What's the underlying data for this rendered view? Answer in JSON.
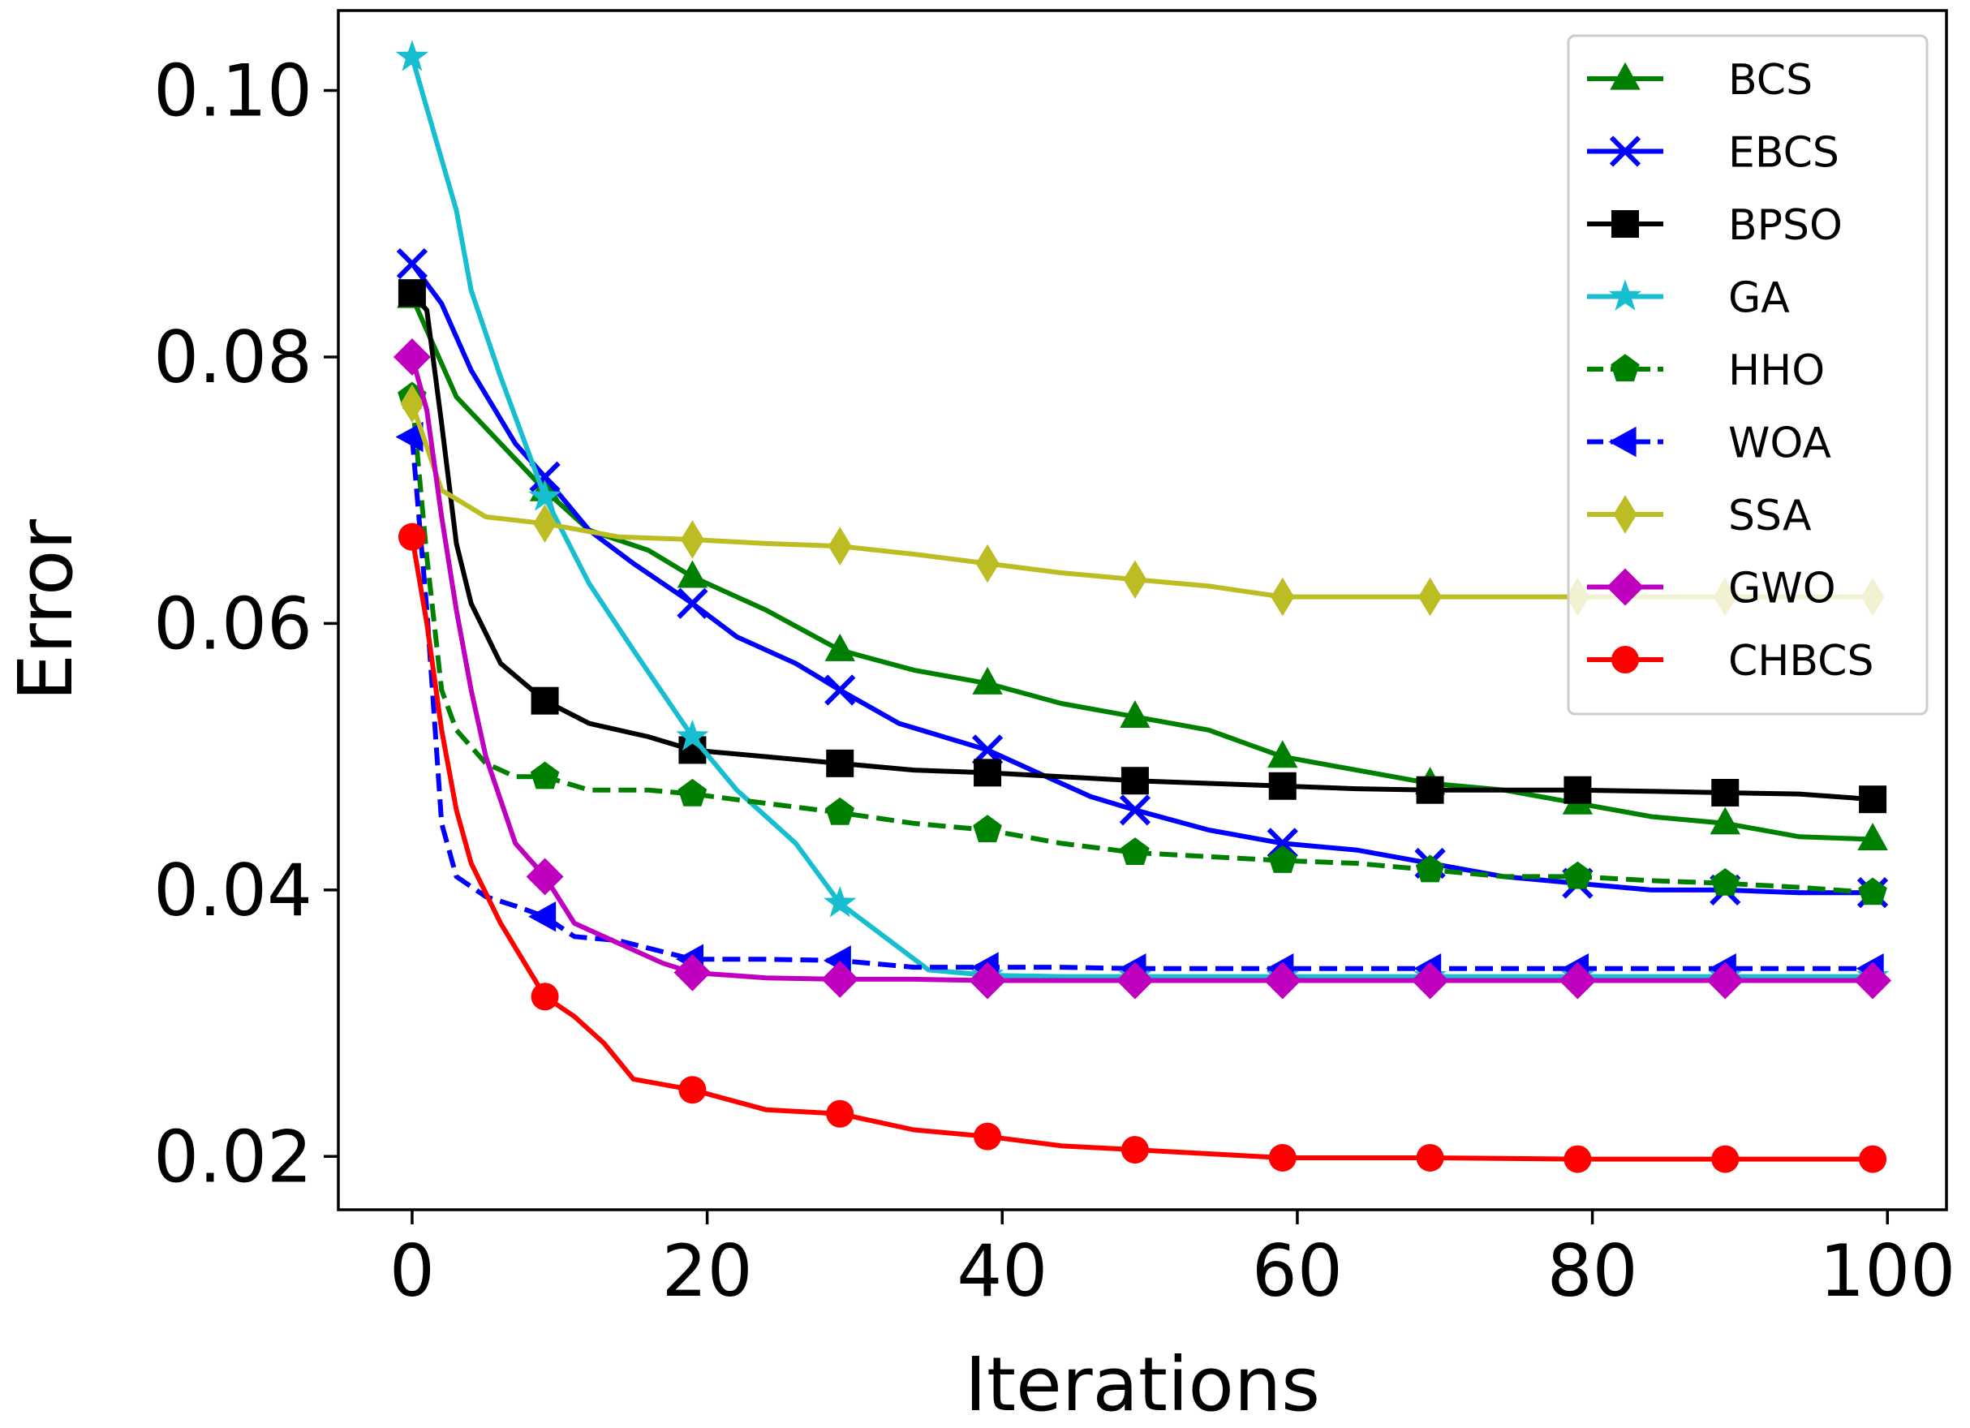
{
  "chart_data": {
    "type": "line",
    "title": "",
    "xlabel": "Iterations",
    "ylabel": "Error",
    "xlim": [
      -5,
      104
    ],
    "ylim": [
      0.016,
      0.106
    ],
    "xticks": [
      0,
      20,
      40,
      60,
      80,
      100
    ],
    "xtick_labels": [
      "0",
      "20",
      "40",
      "60",
      "80",
      "100"
    ],
    "yticks": [
      0.02,
      0.04,
      0.06,
      0.08,
      0.1
    ],
    "ytick_labels": [
      "0.02",
      "0.04",
      "0.06",
      "0.08",
      "0.10"
    ],
    "grid": false,
    "legend_position": "top-right",
    "series": [
      {
        "name": "BCS",
        "color": "#008000",
        "marker": "triangle-up",
        "dash": "solid",
        "x": [
          0,
          3,
          6,
          9,
          12,
          16,
          19,
          24,
          29,
          34,
          39,
          44,
          49,
          54,
          59,
          64,
          69,
          74,
          79,
          84,
          89,
          94,
          99
        ],
        "y": [
          0.0845,
          0.077,
          0.0735,
          0.07,
          0.067,
          0.0655,
          0.0635,
          0.061,
          0.058,
          0.0565,
          0.0555,
          0.054,
          0.053,
          0.052,
          0.05,
          0.049,
          0.048,
          0.0475,
          0.0465,
          0.0455,
          0.045,
          0.044,
          0.0438
        ],
        "markers_x": [
          0,
          9,
          19,
          29,
          39,
          49,
          59,
          69,
          79,
          89,
          99
        ],
        "markers_y": [
          0.0845,
          0.07,
          0.0635,
          0.058,
          0.0555,
          0.053,
          0.05,
          0.048,
          0.0465,
          0.045,
          0.0438
        ]
      },
      {
        "name": "EBCS",
        "color": "#0000ff",
        "marker": "x",
        "dash": "solid",
        "x": [
          0,
          2,
          4,
          7,
          9,
          12,
          15,
          19,
          22,
          26,
          29,
          33,
          36,
          39,
          42,
          46,
          49,
          54,
          59,
          64,
          69,
          74,
          79,
          84,
          89,
          94,
          99
        ],
        "y": [
          0.087,
          0.084,
          0.079,
          0.0735,
          0.071,
          0.067,
          0.0645,
          0.0615,
          0.059,
          0.057,
          0.055,
          0.0525,
          0.0515,
          0.0505,
          0.049,
          0.047,
          0.046,
          0.0445,
          0.0435,
          0.043,
          0.042,
          0.041,
          0.0405,
          0.04,
          0.04,
          0.0398,
          0.0398
        ],
        "markers_x": [
          0,
          9,
          19,
          29,
          39,
          49,
          59,
          69,
          79,
          89,
          99
        ],
        "markers_y": [
          0.087,
          0.071,
          0.0615,
          0.055,
          0.0505,
          0.046,
          0.0435,
          0.042,
          0.0405,
          0.04,
          0.0398
        ]
      },
      {
        "name": "BPSO",
        "color": "#000000",
        "marker": "square",
        "dash": "solid",
        "x": [
          0,
          1,
          2,
          3,
          4,
          6,
          9,
          12,
          16,
          19,
          24,
          29,
          34,
          39,
          44,
          49,
          54,
          59,
          64,
          69,
          74,
          79,
          84,
          89,
          94,
          99
        ],
        "y": [
          0.0848,
          0.0835,
          0.075,
          0.066,
          0.0615,
          0.057,
          0.0542,
          0.0525,
          0.0515,
          0.0505,
          0.05,
          0.0495,
          0.049,
          0.0488,
          0.0485,
          0.0482,
          0.048,
          0.0478,
          0.0476,
          0.0475,
          0.0475,
          0.0475,
          0.0474,
          0.0473,
          0.0472,
          0.0468
        ],
        "markers_x": [
          0,
          9,
          19,
          29,
          39,
          49,
          59,
          69,
          79,
          89,
          99
        ],
        "markers_y": [
          0.0848,
          0.0542,
          0.0505,
          0.0495,
          0.0488,
          0.0482,
          0.0478,
          0.0475,
          0.0475,
          0.0473,
          0.0468
        ]
      },
      {
        "name": "GA",
        "color": "#17becf",
        "marker": "star",
        "dash": "solid",
        "x": [
          0,
          3,
          4,
          6,
          9,
          12,
          15,
          19,
          22,
          26,
          29,
          32,
          35,
          39,
          44,
          49,
          59,
          69,
          79,
          89,
          99
        ],
        "y": [
          0.1025,
          0.091,
          0.085,
          0.0785,
          0.0695,
          0.063,
          0.058,
          0.0515,
          0.0475,
          0.0435,
          0.039,
          0.0365,
          0.034,
          0.0336,
          0.0335,
          0.0335,
          0.0335,
          0.0335,
          0.0335,
          0.0335,
          0.0335
        ],
        "markers_x": [
          0,
          9,
          19,
          29,
          39,
          49,
          59,
          69,
          79,
          89,
          99
        ],
        "markers_y": [
          0.1025,
          0.0695,
          0.0515,
          0.039,
          0.0336,
          0.0335,
          0.0335,
          0.0335,
          0.0335,
          0.0335,
          0.0335
        ]
      },
      {
        "name": "HHO",
        "color": "#008000",
        "marker": "pentagon",
        "dash": "dashed",
        "x": [
          0,
          1,
          2,
          3,
          5,
          7,
          9,
          12,
          16,
          19,
          24,
          29,
          34,
          39,
          44,
          49,
          54,
          59,
          64,
          69,
          74,
          79,
          84,
          89,
          94,
          99
        ],
        "y": [
          0.077,
          0.065,
          0.055,
          0.052,
          0.0495,
          0.0485,
          0.0485,
          0.0475,
          0.0475,
          0.0472,
          0.0465,
          0.0458,
          0.045,
          0.0445,
          0.0435,
          0.0428,
          0.0425,
          0.0422,
          0.042,
          0.0415,
          0.041,
          0.041,
          0.0407,
          0.0405,
          0.0402,
          0.0398
        ],
        "markers_x": [
          0,
          9,
          19,
          29,
          39,
          49,
          59,
          69,
          79,
          89,
          99
        ],
        "markers_y": [
          0.077,
          0.0485,
          0.0472,
          0.0458,
          0.0445,
          0.0428,
          0.0422,
          0.0415,
          0.041,
          0.0405,
          0.0398
        ]
      },
      {
        "name": "WOA",
        "color": "#0000ff",
        "marker": "triangle-left",
        "dash": "dashed",
        "x": [
          0,
          1,
          2,
          3,
          5,
          7,
          9,
          11,
          14,
          19,
          24,
          29,
          34,
          39,
          44,
          49,
          59,
          69,
          79,
          89,
          99
        ],
        "y": [
          0.074,
          0.061,
          0.045,
          0.041,
          0.0395,
          0.0388,
          0.038,
          0.0365,
          0.0362,
          0.0348,
          0.0348,
          0.0347,
          0.0342,
          0.0342,
          0.0342,
          0.0341,
          0.0341,
          0.0341,
          0.0341,
          0.0341,
          0.0341
        ],
        "markers_x": [
          0,
          9,
          19,
          29,
          39,
          49,
          59,
          69,
          79,
          89,
          99
        ],
        "markers_y": [
          0.074,
          0.038,
          0.0348,
          0.0347,
          0.0342,
          0.0341,
          0.0341,
          0.0341,
          0.0341,
          0.0341,
          0.0341
        ]
      },
      {
        "name": "SSA",
        "color": "#bcbd22",
        "marker": "thin-diamond",
        "dash": "solid",
        "x": [
          0,
          2,
          5,
          9,
          14,
          19,
          24,
          29,
          34,
          39,
          44,
          49,
          54,
          59,
          64,
          69,
          79,
          89,
          99
        ],
        "y": [
          0.0765,
          0.07,
          0.068,
          0.0675,
          0.0665,
          0.0663,
          0.066,
          0.0658,
          0.0652,
          0.0645,
          0.0638,
          0.0633,
          0.0628,
          0.062,
          0.062,
          0.062,
          0.062,
          0.062,
          0.062
        ],
        "markers_x": [
          0,
          9,
          19,
          29,
          39,
          49,
          59,
          69,
          79,
          89,
          99
        ],
        "markers_y": [
          0.0765,
          0.0675,
          0.0663,
          0.0658,
          0.0645,
          0.0633,
          0.062,
          0.062,
          0.062,
          0.062,
          0.062
        ]
      },
      {
        "name": "GWO",
        "color": "#bf00bf",
        "marker": "diamond",
        "dash": "solid",
        "x": [
          0,
          1,
          2,
          3,
          4,
          5,
          7,
          9,
          11,
          14,
          17,
          19,
          24,
          29,
          34,
          39,
          49,
          59,
          69,
          79,
          89,
          99
        ],
        "y": [
          0.08,
          0.076,
          0.068,
          0.061,
          0.055,
          0.05,
          0.0435,
          0.041,
          0.0375,
          0.036,
          0.0345,
          0.0338,
          0.0334,
          0.0333,
          0.0333,
          0.0332,
          0.0332,
          0.0332,
          0.0332,
          0.0332,
          0.0332,
          0.0332
        ],
        "markers_x": [
          0,
          9,
          19,
          29,
          39,
          49,
          59,
          69,
          79,
          89,
          99
        ],
        "markers_y": [
          0.08,
          0.041,
          0.0338,
          0.0333,
          0.0332,
          0.0332,
          0.0332,
          0.0332,
          0.0332,
          0.0332,
          0.0332
        ]
      },
      {
        "name": "CHBCS",
        "color": "#ff0000",
        "marker": "circle",
        "dash": "solid",
        "x": [
          0,
          1,
          2,
          3,
          4,
          6,
          9,
          11,
          13,
          15,
          19,
          24,
          29,
          34,
          39,
          44,
          49,
          54,
          59,
          69,
          79,
          89,
          99
        ],
        "y": [
          0.0665,
          0.06,
          0.052,
          0.046,
          0.042,
          0.0375,
          0.032,
          0.0305,
          0.0285,
          0.0258,
          0.025,
          0.0235,
          0.0232,
          0.022,
          0.0215,
          0.0208,
          0.0205,
          0.0202,
          0.0199,
          0.0199,
          0.0198,
          0.0198,
          0.0198
        ],
        "markers_x": [
          0,
          9,
          19,
          29,
          39,
          49,
          59,
          69,
          79,
          89,
          99
        ],
        "markers_y": [
          0.0665,
          0.032,
          0.025,
          0.0232,
          0.0215,
          0.0205,
          0.0199,
          0.0199,
          0.0198,
          0.0198,
          0.0198
        ]
      }
    ]
  }
}
